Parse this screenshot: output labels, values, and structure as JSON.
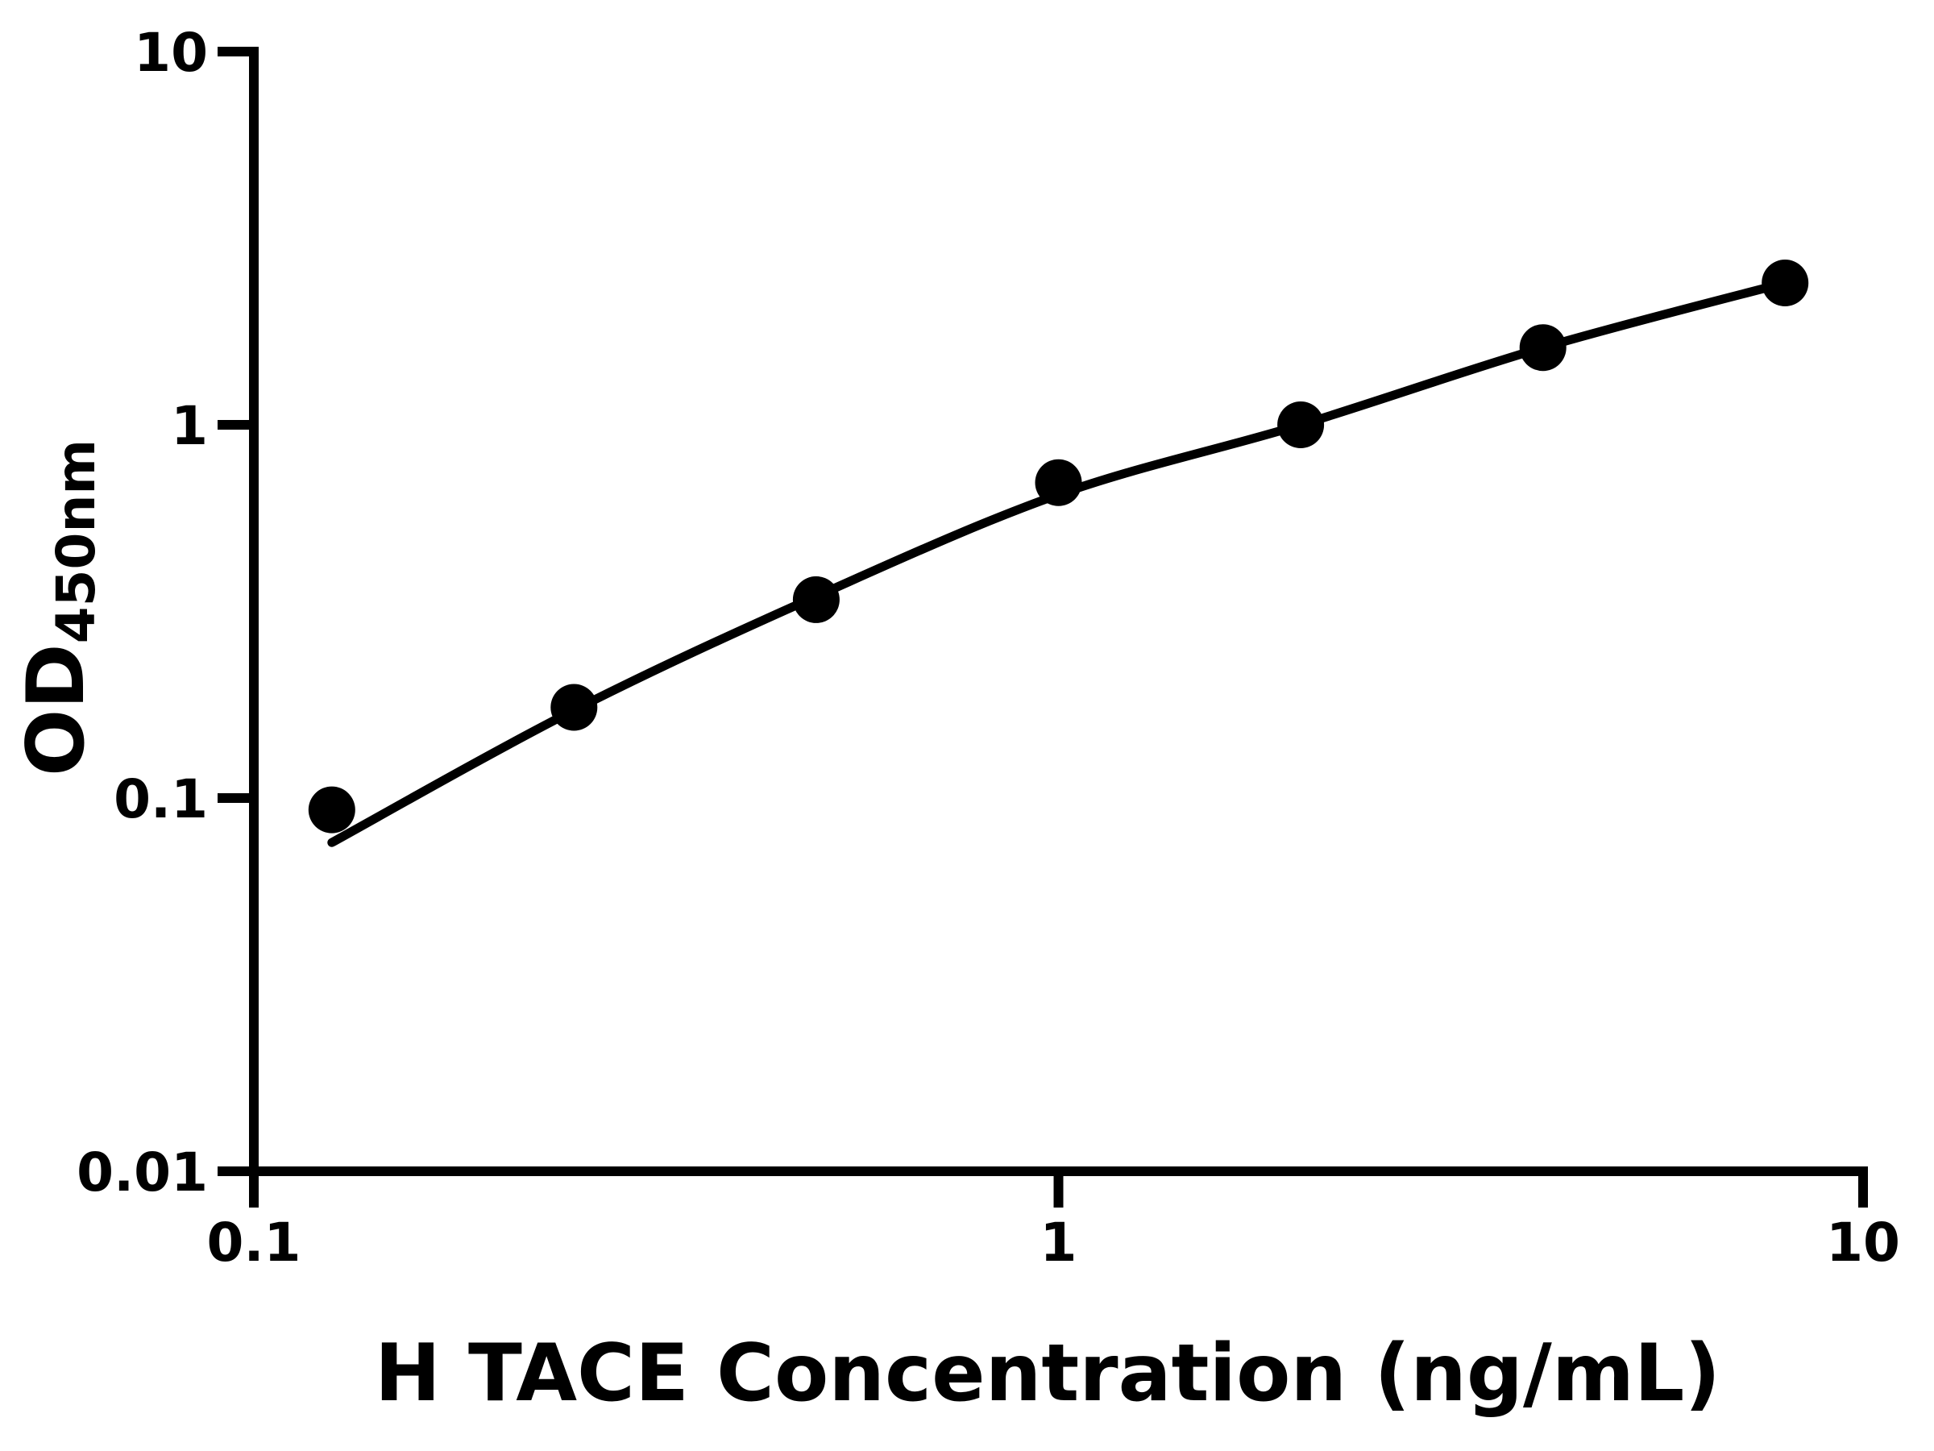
{
  "figure": {
    "background_color": "#ffffff",
    "ink_color": "#000000"
  },
  "chart_data": {
    "type": "scatter",
    "title": "",
    "xlabel": "H TACE Concentration (ng/mL)",
    "ylabel": "OD",
    "ylabel_subscript": "450nm",
    "x_scale": "log10",
    "y_scale": "log10",
    "xlim": [
      0.1,
      10
    ],
    "ylim": [
      0.01,
      10
    ],
    "x_ticks": [
      0.1,
      1,
      10
    ],
    "x_tick_labels": [
      "0.1",
      "1",
      "10"
    ],
    "y_ticks": [
      0.01,
      0.1,
      1,
      10
    ],
    "y_tick_labels": [
      "0.01",
      "0.1",
      "1",
      "10"
    ],
    "grid": false,
    "legend": false,
    "series": [
      {
        "name": "standard-data-points",
        "kind": "scatter",
        "marker": "filled-circle",
        "color": "#000000",
        "x": [
          0.125,
          0.25,
          0.5,
          1,
          2,
          4,
          8
        ],
        "y": [
          0.093,
          0.175,
          0.34,
          0.7,
          1.0,
          1.61,
          2.4
        ]
      },
      {
        "name": "fitted-standard-curve",
        "kind": "line",
        "color": "#000000",
        "x": [
          0.125,
          0.25,
          0.5,
          1,
          2,
          4,
          8
        ],
        "y": [
          0.076,
          0.172,
          0.347,
          0.65,
          1.0,
          1.61,
          2.4
        ]
      }
    ]
  }
}
